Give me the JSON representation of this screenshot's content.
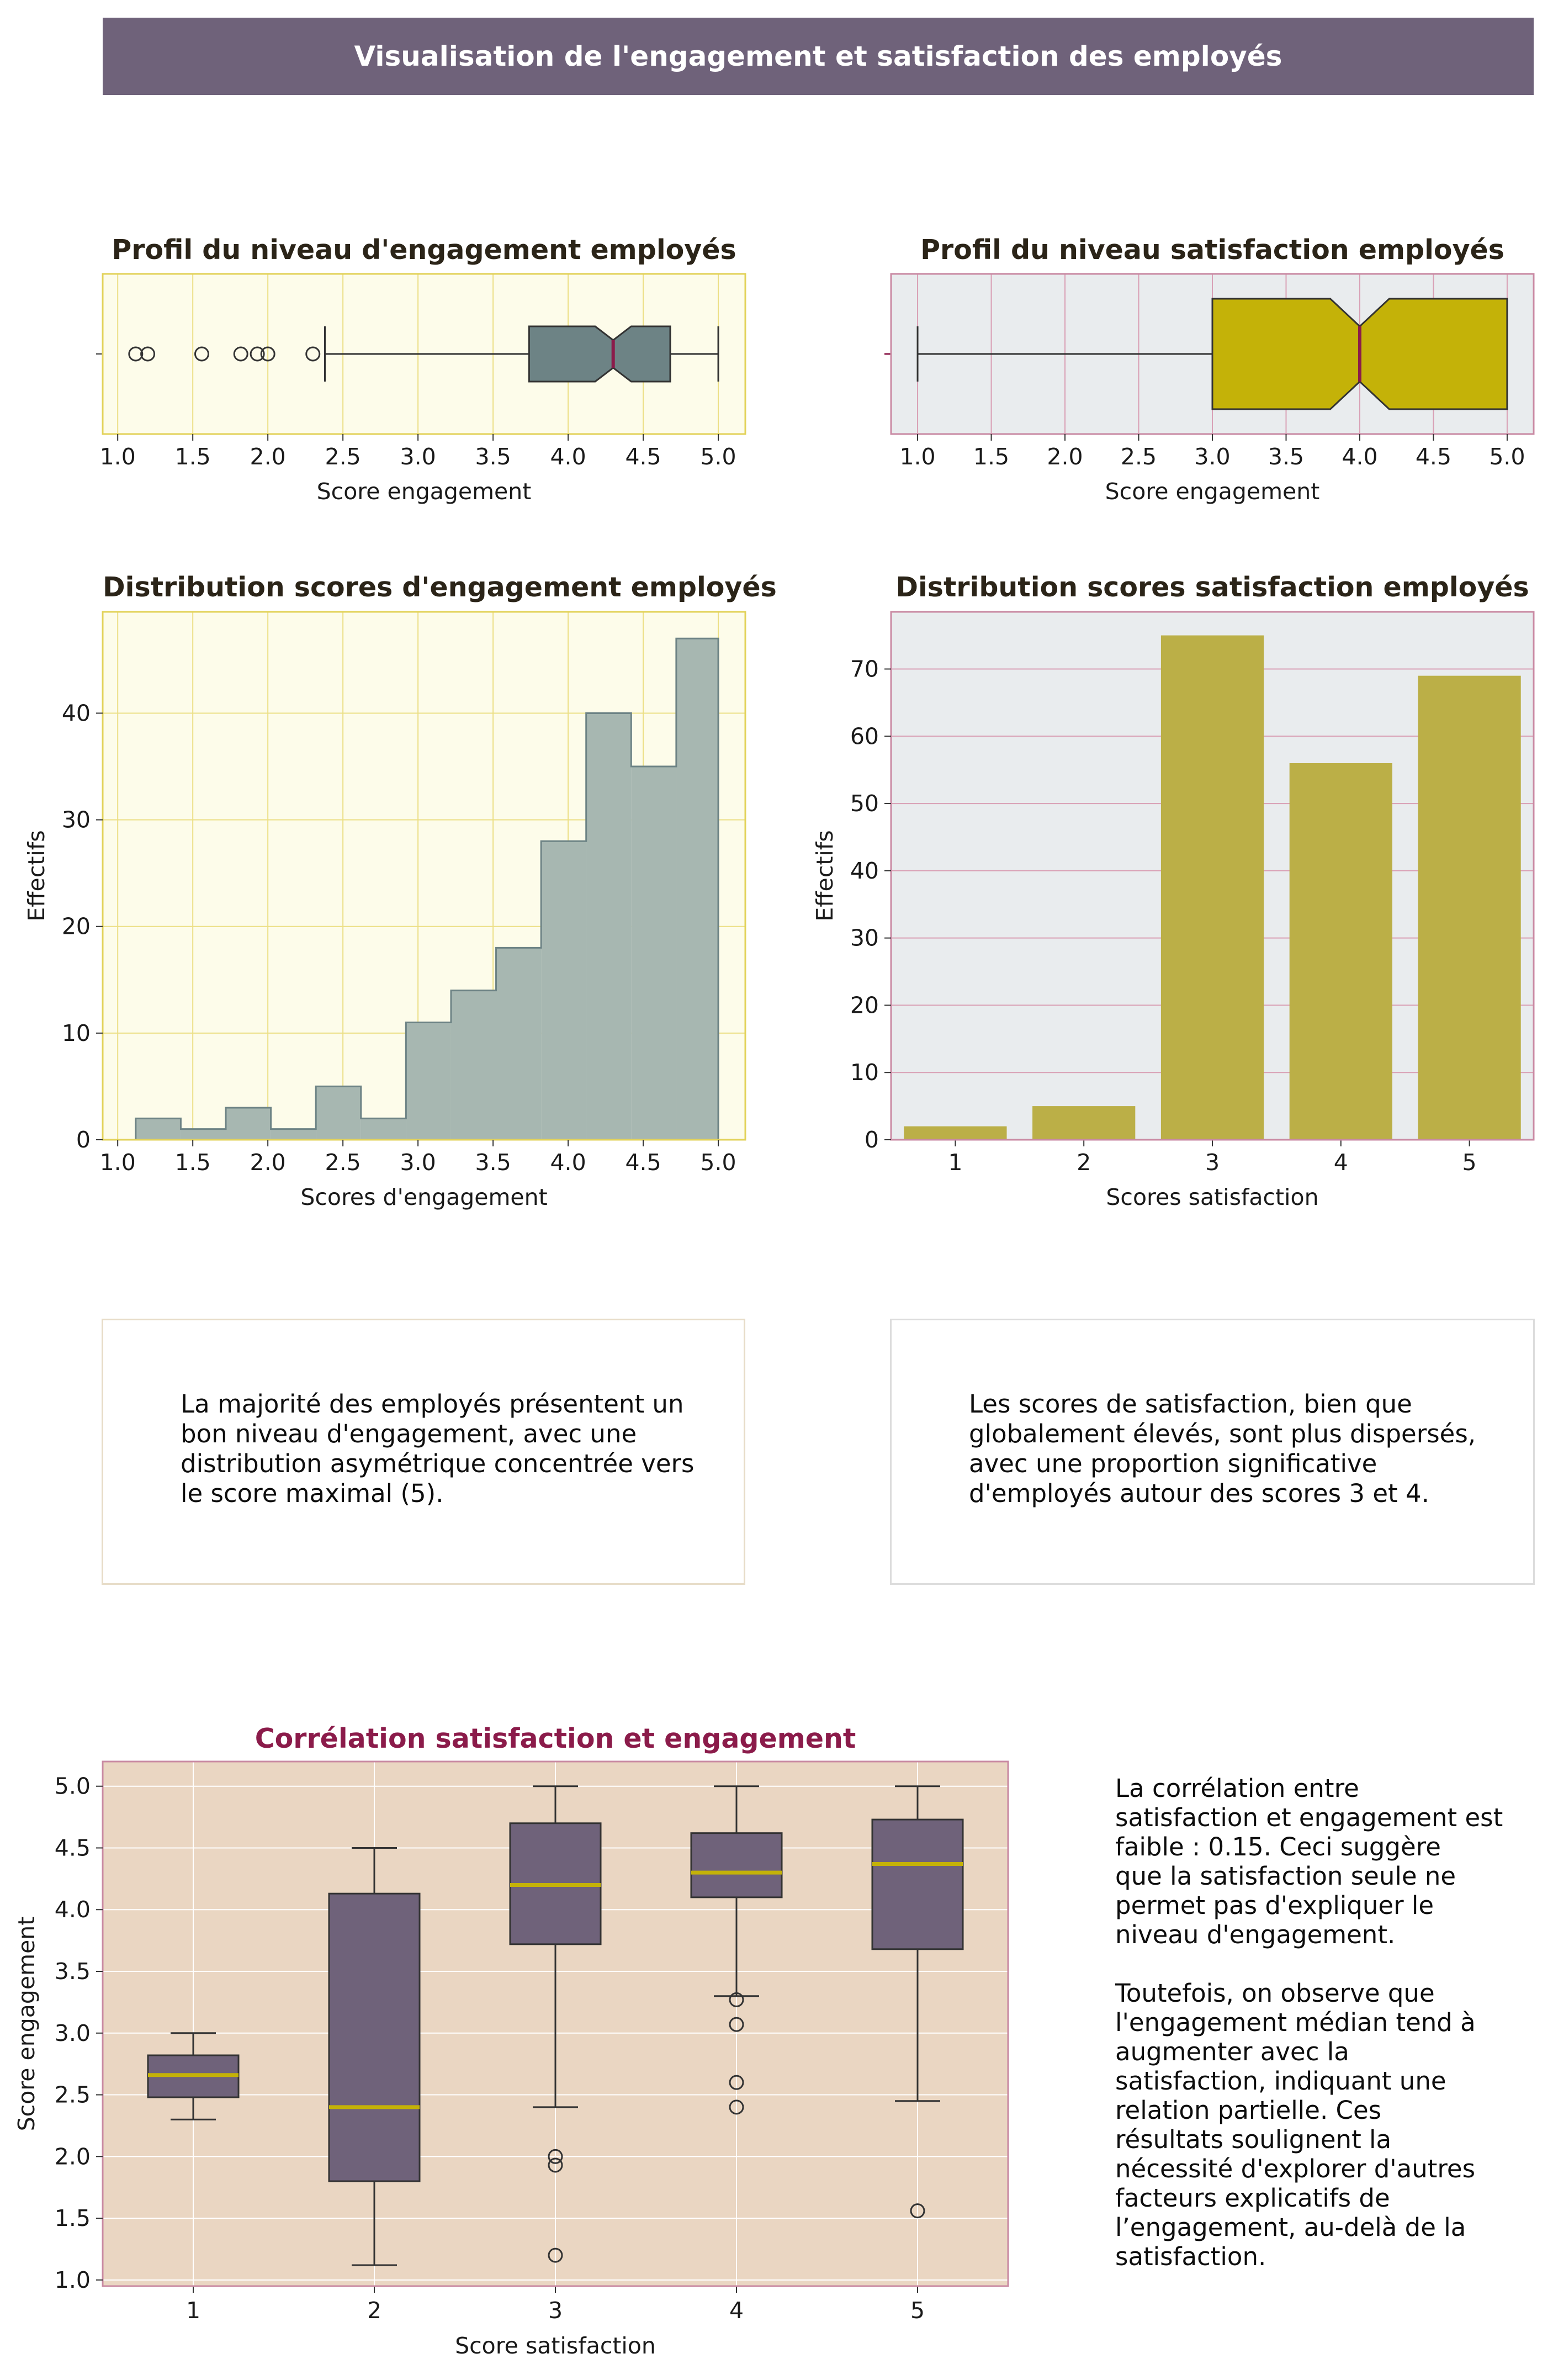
{
  "header": {
    "title": "Visualisation de l'engagement et satisfaction des employés"
  },
  "colors": {
    "banner": "#6f627a",
    "engagement": "#6d8385",
    "engagement_hist": "#a7b7b1",
    "satisfaction_box": "#c4b208",
    "satisfaction_bar": "#bbaf47",
    "median_line": "#8b1b4a",
    "corr_title": "#8b1b4a",
    "corr_box": "#6f627a",
    "corr_median": "#c4b208",
    "panel_yellow": "#fdfcea",
    "panel_grey": "#e9ecee",
    "panel_tan": "#ead6c2"
  },
  "chart_data": [
    {
      "id": "box_engagement",
      "type": "box",
      "title": "Profil du niveau d'engagement employés",
      "xlabel": "Score engagement",
      "xlim": [
        0.9,
        5.18
      ],
      "xticks": [
        "1.0",
        "1.5",
        "2.0",
        "2.5",
        "3.0",
        "3.5",
        "4.0",
        "4.5",
        "5.0"
      ],
      "notched": true,
      "grid": true,
      "box": {
        "whisker_low": 2.38,
        "q1": 3.74,
        "median": 4.3,
        "q3": 4.68,
        "whisker_high": 5.0,
        "notch_low": 4.18,
        "notch_high": 4.42,
        "outliers": [
          1.12,
          1.2,
          1.56,
          1.82,
          1.93,
          2.0,
          2.3
        ]
      }
    },
    {
      "id": "box_satisfaction",
      "type": "box",
      "title": "Profil du niveau satisfaction employés",
      "xlabel": "Score engagement",
      "xlim": [
        0.82,
        5.18
      ],
      "xticks": [
        "1.0",
        "1.5",
        "2.0",
        "2.5",
        "3.0",
        "3.5",
        "4.0",
        "4.5",
        "5.0"
      ],
      "notched": true,
      "grid": true,
      "box": {
        "whisker_low": 1.0,
        "q1": 3.0,
        "median": 4.0,
        "q3": 5.0,
        "whisker_high": 5.0,
        "notch_low": 3.8,
        "notch_high": 4.2,
        "outliers": []
      }
    },
    {
      "id": "hist_engagement",
      "type": "histogram",
      "title": "Distribution scores d'engagement employés",
      "xlabel": "Scores d'engagement",
      "ylabel": "Effectifs",
      "xlim": [
        0.9,
        5.18
      ],
      "ylim": [
        0,
        49.5
      ],
      "xticks": [
        "1.0",
        "1.5",
        "2.0",
        "2.5",
        "3.0",
        "3.5",
        "4.0",
        "4.5",
        "5.0"
      ],
      "yticks": [
        "0",
        "10",
        "20",
        "30",
        "40"
      ],
      "grid": true,
      "bin_edges": [
        1.12,
        1.42,
        1.72,
        2.02,
        2.32,
        2.62,
        2.92,
        3.22,
        3.52,
        3.82,
        4.12,
        4.42,
        4.72,
        5.0
      ],
      "counts": [
        2,
        1,
        3,
        1,
        5,
        2,
        11,
        14,
        18,
        28,
        40,
        35,
        47
      ]
    },
    {
      "id": "bar_satisfaction",
      "type": "bar",
      "title": "Distribution scores satisfaction employés",
      "xlabel": "Scores satisfaction",
      "ylabel": "Effectifs",
      "ylim": [
        0,
        78.5
      ],
      "yticks": [
        "0",
        "10",
        "20",
        "30",
        "40",
        "50",
        "60",
        "70"
      ],
      "grid": true,
      "categories": [
        "1",
        "2",
        "3",
        "4",
        "5"
      ],
      "values": [
        2,
        5,
        75,
        56,
        69
      ]
    },
    {
      "id": "box_correlation",
      "type": "box",
      "title": "Corrélation satisfaction et engagement",
      "xlabel": "Score satisfaction",
      "ylabel": "Score engagement",
      "ylim": [
        0.95,
        5.2
      ],
      "yticks": [
        "1.0",
        "1.5",
        "2.0",
        "2.5",
        "3.0",
        "3.5",
        "4.0",
        "4.5",
        "5.0"
      ],
      "grid": true,
      "categories": [
        "1",
        "2",
        "3",
        "4",
        "5"
      ],
      "boxes": [
        {
          "whisker_low": 2.3,
          "q1": 2.48,
          "median": 2.66,
          "q3": 2.82,
          "whisker_high": 3.0,
          "outliers": []
        },
        {
          "whisker_low": 1.12,
          "q1": 1.8,
          "median": 2.4,
          "q3": 4.13,
          "whisker_high": 4.5,
          "outliers": []
        },
        {
          "whisker_low": 2.4,
          "q1": 3.72,
          "median": 4.2,
          "q3": 4.7,
          "whisker_high": 5.0,
          "outliers": [
            2.0,
            1.93,
            1.2
          ]
        },
        {
          "whisker_low": 3.3,
          "q1": 4.1,
          "median": 4.3,
          "q3": 4.62,
          "whisker_high": 5.0,
          "outliers": [
            3.27,
            3.07,
            2.6,
            2.4
          ]
        },
        {
          "whisker_low": 2.45,
          "q1": 3.68,
          "median": 4.37,
          "q3": 4.73,
          "whisker_high": 5.0,
          "outliers": [
            1.56
          ]
        }
      ]
    }
  ],
  "comments": {
    "engagement": [
      "La majorité des employés présentent un",
      "bon niveau d'engagement, avec une",
      "distribution asymétrique concentrée vers",
      "le score maximal (5)."
    ],
    "satisfaction": [
      "Les scores de satisfaction, bien que",
      "globalement élevés, sont plus dispersés,",
      "avec une proportion significative",
      "d'employés autour des scores 3 et 4."
    ],
    "correlation_p1": [
      "La corrélation entre",
      "satisfaction et engagement est",
      "faible : 0.15. Ceci suggère",
      "que la satisfaction seule ne",
      "permet pas d'expliquer le",
      "niveau d'engagement."
    ],
    "correlation_p2": [
      "Toutefois, on observe que",
      "l'engagement médian tend à",
      "augmenter avec la",
      "satisfaction, indiquant une",
      "relation partielle. Ces",
      "résultats soulignent la",
      "nécessité d'explorer d'autres",
      "facteurs explicatifs de",
      "l’engagement, au-delà de la",
      "satisfaction."
    ]
  }
}
